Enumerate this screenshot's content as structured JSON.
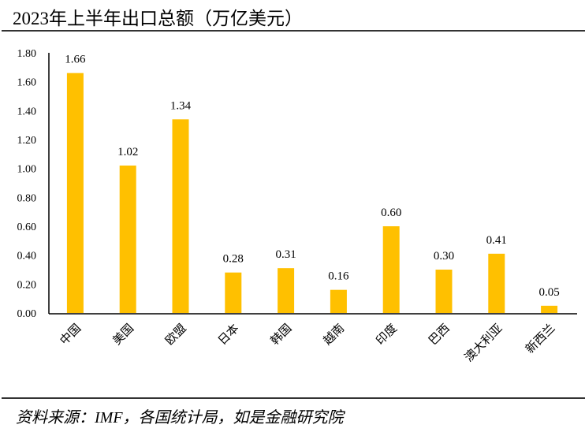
{
  "header": {
    "title": "2023年上半年出口总额（万亿美元）"
  },
  "footer": {
    "source": "资料来源：IMF，各国统计局，如是金融研究院"
  },
  "chart_data": {
    "type": "bar",
    "title": "2023年上半年出口总额（万亿美元）",
    "categories": [
      "中国",
      "美国",
      "欧盟",
      "日本",
      "韩国",
      "越南",
      "印度",
      "巴西",
      "澳大利亚",
      "新西兰"
    ],
    "values": [
      1.66,
      1.02,
      1.34,
      0.28,
      0.31,
      0.16,
      0.6,
      0.3,
      0.41,
      0.05
    ],
    "data_labels": [
      "1.66",
      "1.02",
      "1.34",
      "0.28",
      "0.31",
      "0.16",
      "0.60",
      "0.30",
      "0.41",
      "0.05"
    ],
    "yticks": [
      "0.00",
      "0.20",
      "0.40",
      "0.60",
      "0.80",
      "1.00",
      "1.20",
      "1.40",
      "1.60",
      "1.80"
    ],
    "ylim": [
      0,
      1.8
    ],
    "xlabel": "",
    "ylabel": "",
    "grid": false,
    "legend": "none",
    "bar_color": "#FFC000"
  }
}
